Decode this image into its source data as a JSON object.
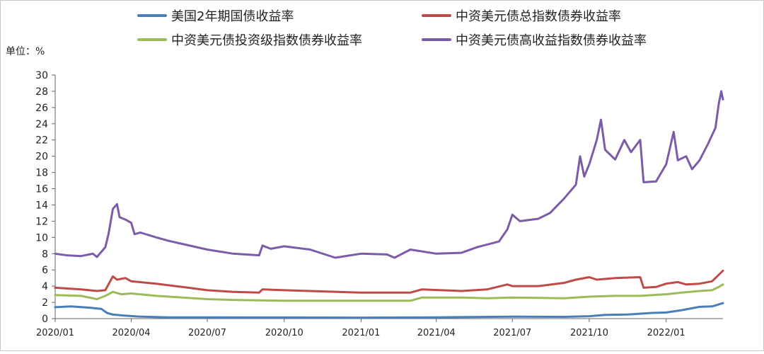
{
  "chart_data": {
    "type": "line",
    "unit_label": "单位：%",
    "ylim": [
      0,
      30
    ],
    "y_ticks": [
      "0",
      "2",
      "4",
      "6",
      "8",
      "10",
      "12",
      "14",
      "16",
      "18",
      "20",
      "22",
      "24",
      "26",
      "28",
      "30"
    ],
    "x_range": [
      "2020-01-01",
      "2022-03-10"
    ],
    "x_ticks": [
      {
        "date": "2020-01-01",
        "label": "2020/01"
      },
      {
        "date": "2020-04-01",
        "label": "2020/04"
      },
      {
        "date": "2020-07-01",
        "label": "2020/07"
      },
      {
        "date": "2020-10-01",
        "label": "2020/10"
      },
      {
        "date": "2021-01-01",
        "label": "2021/01"
      },
      {
        "date": "2021-04-01",
        "label": "2021/04"
      },
      {
        "date": "2021-07-01",
        "label": "2021/07"
      },
      {
        "date": "2021-10-01",
        "label": "2021/10"
      },
      {
        "date": "2022-01-01",
        "label": "2022/01"
      }
    ],
    "grid": false,
    "legend_position": "top",
    "series": [
      {
        "name": "美国2年期国债收益率",
        "color": "#4a7ebb",
        "points": [
          [
            "2020-01-01",
            1.4
          ],
          [
            "2020-01-20",
            1.5
          ],
          [
            "2020-02-10",
            1.35
          ],
          [
            "2020-02-25",
            1.2
          ],
          [
            "2020-03-03",
            0.7
          ],
          [
            "2020-03-10",
            0.5
          ],
          [
            "2020-03-20",
            0.4
          ],
          [
            "2020-04-10",
            0.25
          ],
          [
            "2020-05-15",
            0.16
          ],
          [
            "2020-07-01",
            0.15
          ],
          [
            "2020-10-01",
            0.14
          ],
          [
            "2021-01-01",
            0.12
          ],
          [
            "2021-04-01",
            0.16
          ],
          [
            "2021-07-01",
            0.24
          ],
          [
            "2021-09-01",
            0.22
          ],
          [
            "2021-10-01",
            0.3
          ],
          [
            "2021-10-20",
            0.45
          ],
          [
            "2021-11-15",
            0.5
          ],
          [
            "2021-12-15",
            0.7
          ],
          [
            "2022-01-01",
            0.75
          ],
          [
            "2022-01-20",
            1.05
          ],
          [
            "2022-02-10",
            1.45
          ],
          [
            "2022-02-25",
            1.5
          ],
          [
            "2022-03-10",
            1.9
          ]
        ]
      },
      {
        "name": "中资美元债总指数债券收益率",
        "color": "#be4b48",
        "points": [
          [
            "2020-01-01",
            3.8
          ],
          [
            "2020-02-01",
            3.6
          ],
          [
            "2020-02-20",
            3.4
          ],
          [
            "2020-03-01",
            3.5
          ],
          [
            "2020-03-10",
            5.2
          ],
          [
            "2020-03-15",
            4.8
          ],
          [
            "2020-03-25",
            5.0
          ],
          [
            "2020-04-01",
            4.6
          ],
          [
            "2020-05-01",
            4.3
          ],
          [
            "2020-06-01",
            3.9
          ],
          [
            "2020-07-01",
            3.5
          ],
          [
            "2020-08-01",
            3.3
          ],
          [
            "2020-09-01",
            3.2
          ],
          [
            "2020-09-05",
            3.6
          ],
          [
            "2020-10-01",
            3.5
          ],
          [
            "2021-01-01",
            3.2
          ],
          [
            "2021-03-01",
            3.2
          ],
          [
            "2021-03-15",
            3.6
          ],
          [
            "2021-05-01",
            3.4
          ],
          [
            "2021-06-01",
            3.6
          ],
          [
            "2021-06-25",
            4.2
          ],
          [
            "2021-07-01",
            4.0
          ],
          [
            "2021-08-01",
            4.0
          ],
          [
            "2021-09-01",
            4.4
          ],
          [
            "2021-09-15",
            4.8
          ],
          [
            "2021-10-01",
            5.1
          ],
          [
            "2021-10-10",
            4.8
          ],
          [
            "2021-11-01",
            5.0
          ],
          [
            "2021-12-01",
            5.1
          ],
          [
            "2021-12-05",
            3.8
          ],
          [
            "2021-12-20",
            3.9
          ],
          [
            "2022-01-01",
            4.3
          ],
          [
            "2022-01-15",
            4.5
          ],
          [
            "2022-01-25",
            4.2
          ],
          [
            "2022-02-10",
            4.3
          ],
          [
            "2022-02-25",
            4.6
          ],
          [
            "2022-03-05",
            5.4
          ],
          [
            "2022-03-10",
            5.9
          ]
        ]
      },
      {
        "name": "中资美元债投资级指数债券收益率",
        "color": "#9bbb59",
        "points": [
          [
            "2020-01-01",
            2.9
          ],
          [
            "2020-02-01",
            2.8
          ],
          [
            "2020-02-20",
            2.4
          ],
          [
            "2020-03-01",
            2.8
          ],
          [
            "2020-03-10",
            3.3
          ],
          [
            "2020-03-20",
            3.0
          ],
          [
            "2020-04-01",
            3.1
          ],
          [
            "2020-05-01",
            2.8
          ],
          [
            "2020-06-01",
            2.6
          ],
          [
            "2020-07-01",
            2.4
          ],
          [
            "2020-08-01",
            2.3
          ],
          [
            "2020-10-01",
            2.2
          ],
          [
            "2021-01-01",
            2.2
          ],
          [
            "2021-03-01",
            2.2
          ],
          [
            "2021-03-15",
            2.6
          ],
          [
            "2021-05-01",
            2.6
          ],
          [
            "2021-06-01",
            2.5
          ],
          [
            "2021-07-01",
            2.6
          ],
          [
            "2021-09-01",
            2.5
          ],
          [
            "2021-10-01",
            2.7
          ],
          [
            "2021-11-01",
            2.8
          ],
          [
            "2021-12-01",
            2.8
          ],
          [
            "2022-01-01",
            3.0
          ],
          [
            "2022-01-20",
            3.2
          ],
          [
            "2022-02-10",
            3.4
          ],
          [
            "2022-02-25",
            3.5
          ],
          [
            "2022-03-05",
            3.9
          ],
          [
            "2022-03-10",
            4.2
          ]
        ]
      },
      {
        "name": "中资美元债高收益指数债券收益率",
        "color": "#7c5ca8",
        "points": [
          [
            "2020-01-01",
            8.0
          ],
          [
            "2020-01-15",
            7.8
          ],
          [
            "2020-02-01",
            7.7
          ],
          [
            "2020-02-15",
            8.0
          ],
          [
            "2020-02-20",
            7.6
          ],
          [
            "2020-03-01",
            8.8
          ],
          [
            "2020-03-05",
            10.5
          ],
          [
            "2020-03-10",
            13.5
          ],
          [
            "2020-03-15",
            14.1
          ],
          [
            "2020-03-18",
            12.5
          ],
          [
            "2020-03-25",
            12.2
          ],
          [
            "2020-04-01",
            11.8
          ],
          [
            "2020-04-05",
            10.4
          ],
          [
            "2020-04-12",
            10.6
          ],
          [
            "2020-05-01",
            10.0
          ],
          [
            "2020-05-15",
            9.6
          ],
          [
            "2020-06-01",
            9.2
          ],
          [
            "2020-07-01",
            8.5
          ],
          [
            "2020-08-01",
            8.0
          ],
          [
            "2020-09-01",
            7.8
          ],
          [
            "2020-09-05",
            9.0
          ],
          [
            "2020-09-15",
            8.6
          ],
          [
            "2020-10-01",
            8.9
          ],
          [
            "2020-11-01",
            8.5
          ],
          [
            "2020-12-01",
            7.5
          ],
          [
            "2021-01-01",
            8.0
          ],
          [
            "2021-02-01",
            7.9
          ],
          [
            "2021-02-10",
            7.5
          ],
          [
            "2021-03-01",
            8.5
          ],
          [
            "2021-04-01",
            8.0
          ],
          [
            "2021-05-01",
            8.1
          ],
          [
            "2021-05-20",
            8.8
          ],
          [
            "2021-06-15",
            9.5
          ],
          [
            "2021-06-25",
            11.0
          ],
          [
            "2021-07-01",
            12.8
          ],
          [
            "2021-07-10",
            12.0
          ],
          [
            "2021-08-01",
            12.3
          ],
          [
            "2021-08-15",
            13.0
          ],
          [
            "2021-09-01",
            14.8
          ],
          [
            "2021-09-15",
            16.5
          ],
          [
            "2021-09-20",
            20.0
          ],
          [
            "2021-09-25",
            17.5
          ],
          [
            "2021-10-01",
            19.0
          ],
          [
            "2021-10-10",
            22.0
          ],
          [
            "2021-10-15",
            24.5
          ],
          [
            "2021-10-20",
            20.8
          ],
          [
            "2021-11-01",
            19.6
          ],
          [
            "2021-11-12",
            22.0
          ],
          [
            "2021-11-20",
            20.5
          ],
          [
            "2021-12-01",
            22.0
          ],
          [
            "2021-12-05",
            16.8
          ],
          [
            "2021-12-20",
            16.9
          ],
          [
            "2022-01-01",
            19.0
          ],
          [
            "2022-01-10",
            23.0
          ],
          [
            "2022-01-15",
            19.5
          ],
          [
            "2022-01-25",
            20.0
          ],
          [
            "2022-02-01",
            18.4
          ],
          [
            "2022-02-10",
            19.5
          ],
          [
            "2022-02-20",
            21.5
          ],
          [
            "2022-03-01",
            23.5
          ],
          [
            "2022-03-05",
            26.5
          ],
          [
            "2022-03-08",
            28.0
          ],
          [
            "2022-03-10",
            27.0
          ]
        ]
      }
    ]
  }
}
